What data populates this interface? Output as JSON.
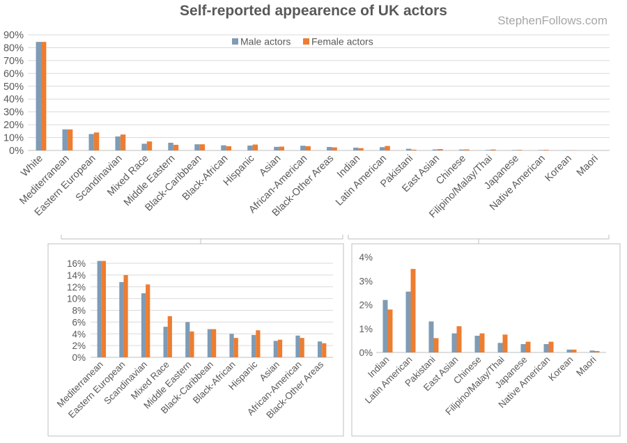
{
  "page": {
    "title": "Self-reported appearence of UK actors",
    "watermark": "StephenFollows.com"
  },
  "chart_data": [
    {
      "type": "bar",
      "id": "main",
      "categories": [
        "White",
        "Mediterranean",
        "Eastern European",
        "Scandinavian",
        "Mixed Race",
        "Middle Eastern",
        "Black-Caribbean",
        "Black-African",
        "Hispanic",
        "Asian",
        "African-American",
        "Black-Other Areas",
        "Indian",
        "Latin American",
        "Pakistani",
        "East Asian",
        "Chinese",
        "Filipino/Malay/Thai",
        "Japanese",
        "Native American",
        "Korean",
        "Maori"
      ],
      "series": [
        {
          "name": "Male actors",
          "color": "#7f9bb5",
          "values": [
            84.5,
            16.4,
            12.8,
            10.9,
            5.2,
            6.0,
            4.8,
            4.0,
            3.8,
            2.8,
            3.7,
            2.7,
            2.2,
            2.55,
            1.3,
            0.8,
            0.7,
            0.4,
            0.35,
            0.35,
            0.12,
            0.08
          ]
        },
        {
          "name": "Female actors",
          "color": "#ed7d31",
          "values": [
            84.5,
            16.4,
            14.0,
            12.4,
            7.0,
            4.4,
            4.8,
            3.3,
            4.6,
            3.0,
            3.3,
            2.4,
            1.8,
            3.5,
            0.6,
            1.1,
            0.8,
            0.75,
            0.45,
            0.45,
            0.12,
            0.06
          ]
        }
      ],
      "yticks": [
        "0%",
        "10%",
        "20%",
        "30%",
        "40%",
        "50%",
        "60%",
        "70%",
        "80%",
        "90%"
      ],
      "ylim": [
        0,
        90
      ],
      "legend": "top-center",
      "grid": true
    },
    {
      "type": "bar",
      "id": "zoom-left",
      "categories": [
        "Mediterranean",
        "Eastern European",
        "Scandinavian",
        "Mixed Race",
        "Middle Eastern",
        "Black-Caribbean",
        "Black-African",
        "Hispanic",
        "Asian",
        "African-American",
        "Black-Other Areas"
      ],
      "series": [
        {
          "color": "#7f9bb5",
          "values": [
            16.4,
            12.8,
            10.9,
            5.2,
            6.0,
            4.8,
            4.0,
            3.8,
            2.8,
            3.7,
            2.7
          ]
        },
        {
          "color": "#ed7d31",
          "values": [
            16.4,
            14.0,
            12.4,
            7.0,
            4.4,
            4.8,
            3.3,
            4.6,
            3.0,
            3.3,
            2.4
          ]
        }
      ],
      "yticks": [
        "0%",
        "2%",
        "4%",
        "6%",
        "8%",
        "10%",
        "12%",
        "14%",
        "16%"
      ],
      "ylim": [
        0,
        16
      ],
      "grid": true
    },
    {
      "type": "bar",
      "id": "zoom-right",
      "categories": [
        "Indian",
        "Latin American",
        "Pakistani",
        "East Asian",
        "Chinese",
        "Filipino/Malay/Thai",
        "Japanese",
        "Native American",
        "Korean",
        "Maori"
      ],
      "series": [
        {
          "color": "#7f9bb5",
          "values": [
            2.2,
            2.55,
            1.3,
            0.8,
            0.7,
            0.4,
            0.35,
            0.35,
            0.12,
            0.08
          ]
        },
        {
          "color": "#ed7d31",
          "values": [
            1.8,
            3.5,
            0.6,
            1.1,
            0.8,
            0.75,
            0.45,
            0.45,
            0.12,
            0.06
          ]
        }
      ],
      "yticks": [
        "0%",
        "1%",
        "2%",
        "3%",
        "4%"
      ],
      "ylim": [
        0,
        4
      ],
      "grid": false
    }
  ]
}
